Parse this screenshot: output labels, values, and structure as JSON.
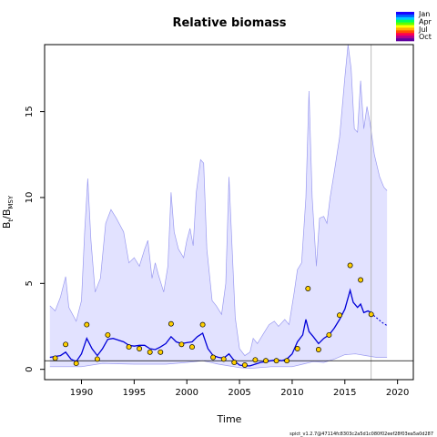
{
  "chart_data": {
    "type": "line",
    "title": "Relative biomass",
    "xlabel": "Time",
    "ylabel_main": "B",
    "ylabel_sub1": "t",
    "ylabel_mid": "/B",
    "ylabel_sub2": "MSY",
    "xlim": [
      1986.5,
      2021.5
    ],
    "ylim": [
      -0.6,
      18.9
    ],
    "x_ticks": [
      1990,
      1995,
      2000,
      2005,
      2010,
      2015,
      2020
    ],
    "y_ticks": [
      0,
      5,
      10,
      15
    ],
    "reference_line_y": 0.5,
    "vertical_line_x": 2017.5,
    "median_end_x": 2017.5,
    "legend_entries": [
      "Jan",
      "Apr",
      "Jul",
      "Oct"
    ],
    "legend_colors": [
      "#1a00ff",
      "#0060ff",
      "#00c8ff",
      "#00ff60",
      "#60ff00",
      "#ffff00",
      "#ffb000",
      "#ff5000",
      "#ff0050",
      "#b00090",
      "#6000a0"
    ],
    "footer": "spict_v1.2.7@47114fc8303c2a5d1c080f02eef28f03ea5a0d287",
    "ci_upper": [
      [
        1987.0,
        3.7
      ],
      [
        1987.5,
        3.4
      ],
      [
        1988.0,
        4.2
      ],
      [
        1988.5,
        5.4
      ],
      [
        1988.8,
        3.6
      ],
      [
        1989.5,
        2.8
      ],
      [
        1990.0,
        4.0
      ],
      [
        1990.3,
        8.0
      ],
      [
        1990.6,
        11.1
      ],
      [
        1990.9,
        7.5
      ],
      [
        1991.3,
        4.5
      ],
      [
        1991.8,
        5.3
      ],
      [
        1992.3,
        8.5
      ],
      [
        1992.8,
        9.3
      ],
      [
        1993.3,
        8.8
      ],
      [
        1994.0,
        8.0
      ],
      [
        1994.5,
        6.2
      ],
      [
        1995.0,
        6.5
      ],
      [
        1995.5,
        6.0
      ],
      [
        1996.0,
        7.0
      ],
      [
        1996.3,
        7.5
      ],
      [
        1996.7,
        5.3
      ],
      [
        1997.0,
        6.2
      ],
      [
        1997.3,
        5.5
      ],
      [
        1997.8,
        4.5
      ],
      [
        1998.2,
        6.0
      ],
      [
        1998.5,
        10.3
      ],
      [
        1998.8,
        8.0
      ],
      [
        1999.2,
        7.0
      ],
      [
        1999.7,
        6.5
      ],
      [
        2000.0,
        7.5
      ],
      [
        2000.3,
        8.2
      ],
      [
        2000.6,
        7.2
      ],
      [
        2000.9,
        10.3
      ],
      [
        2001.3,
        12.2
      ],
      [
        2001.6,
        12.0
      ],
      [
        2001.9,
        7.0
      ],
      [
        2002.4,
        4.0
      ],
      [
        2002.8,
        3.7
      ],
      [
        2003.3,
        3.2
      ],
      [
        2003.7,
        5.0
      ],
      [
        2004.0,
        11.2
      ],
      [
        2004.3,
        7.0
      ],
      [
        2004.6,
        3.0
      ],
      [
        2005.0,
        1.2
      ],
      [
        2005.5,
        0.8
      ],
      [
        2006.0,
        1.0
      ],
      [
        2006.3,
        1.8
      ],
      [
        2006.7,
        1.5
      ],
      [
        2007.2,
        2.0
      ],
      [
        2007.8,
        2.6
      ],
      [
        2008.3,
        2.8
      ],
      [
        2008.7,
        2.5
      ],
      [
        2009.3,
        2.9
      ],
      [
        2009.7,
        2.6
      ],
      [
        2010.2,
        4.5
      ],
      [
        2010.5,
        5.8
      ],
      [
        2010.9,
        6.2
      ],
      [
        2011.3,
        10.0
      ],
      [
        2011.6,
        16.2
      ],
      [
        2011.9,
        10.0
      ],
      [
        2012.3,
        6.0
      ],
      [
        2012.6,
        8.8
      ],
      [
        2013.0,
        8.9
      ],
      [
        2013.3,
        8.5
      ],
      [
        2013.6,
        10.0
      ],
      [
        2014.0,
        11.5
      ],
      [
        2014.5,
        13.5
      ],
      [
        2015.0,
        17.0
      ],
      [
        2015.3,
        18.9
      ],
      [
        2015.6,
        17.5
      ],
      [
        2015.9,
        14.0
      ],
      [
        2016.2,
        13.8
      ],
      [
        2016.5,
        16.8
      ],
      [
        2016.8,
        14.0
      ],
      [
        2017.1,
        15.3
      ],
      [
        2017.4,
        14.3
      ],
      [
        2017.8,
        12.5
      ],
      [
        2018.3,
        11.2
      ],
      [
        2018.7,
        10.6
      ],
      [
        2019.0,
        10.4
      ]
    ],
    "ci_lower": [
      [
        1987.0,
        0.15
      ],
      [
        1990.0,
        0.15
      ],
      [
        1992.0,
        0.35
      ],
      [
        1995.0,
        0.3
      ],
      [
        1998.0,
        0.3
      ],
      [
        2000.0,
        0.4
      ],
      [
        2001.5,
        0.5
      ],
      [
        2003.0,
        0.3
      ],
      [
        2005.0,
        0.1
      ],
      [
        2006.0,
        0.05
      ],
      [
        2008.0,
        0.15
      ],
      [
        2010.0,
        0.15
      ],
      [
        2011.0,
        0.3
      ],
      [
        2012.0,
        0.45
      ],
      [
        2013.0,
        0.4
      ],
      [
        2014.0,
        0.6
      ],
      [
        2015.0,
        0.85
      ],
      [
        2016.0,
        0.9
      ],
      [
        2017.0,
        0.8
      ],
      [
        2018.0,
        0.7
      ],
      [
        2019.0,
        0.7
      ]
    ],
    "median": [
      [
        1987.0,
        0.7
      ],
      [
        1987.5,
        0.75
      ],
      [
        1988.0,
        0.8
      ],
      [
        1988.5,
        1.0
      ],
      [
        1989.0,
        0.6
      ],
      [
        1989.5,
        0.45
      ],
      [
        1990.0,
        0.9
      ],
      [
        1990.5,
        1.8
      ],
      [
        1991.0,
        1.2
      ],
      [
        1991.5,
        0.8
      ],
      [
        1992.0,
        1.2
      ],
      [
        1992.5,
        1.75
      ],
      [
        1993.0,
        1.8
      ],
      [
        1993.5,
        1.7
      ],
      [
        1994.0,
        1.6
      ],
      [
        1994.5,
        1.4
      ],
      [
        1995.0,
        1.35
      ],
      [
        1995.5,
        1.4
      ],
      [
        1996.0,
        1.4
      ],
      [
        1996.5,
        1.2
      ],
      [
        1997.0,
        1.15
      ],
      [
        1997.5,
        1.3
      ],
      [
        1998.0,
        1.5
      ],
      [
        1998.5,
        1.9
      ],
      [
        1999.0,
        1.6
      ],
      [
        1999.5,
        1.5
      ],
      [
        2000.0,
        1.55
      ],
      [
        2000.5,
        1.6
      ],
      [
        2001.0,
        1.9
      ],
      [
        2001.5,
        2.1
      ],
      [
        2002.0,
        1.2
      ],
      [
        2002.5,
        0.8
      ],
      [
        2003.0,
        0.7
      ],
      [
        2003.5,
        0.65
      ],
      [
        2004.0,
        0.9
      ],
      [
        2004.5,
        0.5
      ],
      [
        2005.0,
        0.25
      ],
      [
        2005.5,
        0.2
      ],
      [
        2006.0,
        0.2
      ],
      [
        2006.5,
        0.3
      ],
      [
        2007.0,
        0.4
      ],
      [
        2007.5,
        0.45
      ],
      [
        2008.0,
        0.5
      ],
      [
        2008.5,
        0.55
      ],
      [
        2009.0,
        0.5
      ],
      [
        2009.5,
        0.6
      ],
      [
        2010.0,
        0.9
      ],
      [
        2010.5,
        1.6
      ],
      [
        2011.0,
        2.0
      ],
      [
        2011.3,
        2.9
      ],
      [
        2011.6,
        2.2
      ],
      [
        2012.0,
        1.9
      ],
      [
        2012.5,
        1.5
      ],
      [
        2013.0,
        1.8
      ],
      [
        2013.5,
        2.0
      ],
      [
        2014.0,
        2.4
      ],
      [
        2014.5,
        2.9
      ],
      [
        2015.0,
        3.5
      ],
      [
        2015.5,
        4.6
      ],
      [
        2015.8,
        3.9
      ],
      [
        2016.2,
        3.6
      ],
      [
        2016.5,
        3.8
      ],
      [
        2016.8,
        3.3
      ],
      [
        2017.2,
        3.4
      ],
      [
        2017.5,
        3.3
      ]
    ],
    "forecast": [
      [
        2017.5,
        3.3
      ],
      [
        2017.8,
        3.1
      ],
      [
        2018.2,
        2.9
      ],
      [
        2018.6,
        2.7
      ],
      [
        2019.0,
        2.55
      ]
    ],
    "observations": [
      [
        1987.5,
        0.65
      ],
      [
        1988.5,
        1.45
      ],
      [
        1989.5,
        0.35
      ],
      [
        1990.5,
        2.6
      ],
      [
        1991.5,
        0.6
      ],
      [
        1992.5,
        2.0
      ],
      [
        1994.5,
        1.3
      ],
      [
        1995.5,
        1.2
      ],
      [
        1996.5,
        1.0
      ],
      [
        1997.5,
        1.0
      ],
      [
        1998.5,
        2.65
      ],
      [
        1999.5,
        1.45
      ],
      [
        2000.5,
        1.3
      ],
      [
        2001.5,
        2.6
      ],
      [
        2002.5,
        0.7
      ],
      [
        2003.5,
        0.6
      ],
      [
        2004.5,
        0.4
      ],
      [
        2005.5,
        0.25
      ],
      [
        2006.5,
        0.55
      ],
      [
        2007.5,
        0.5
      ],
      [
        2008.5,
        0.5
      ],
      [
        2009.5,
        0.5
      ],
      [
        2010.5,
        1.2
      ],
      [
        2011.5,
        4.7
      ],
      [
        2012.5,
        1.15
      ],
      [
        2013.5,
        2.0
      ],
      [
        2014.5,
        3.15
      ],
      [
        2015.5,
        6.05
      ],
      [
        2016.5,
        5.2
      ],
      [
        2017.5,
        3.2
      ]
    ]
  }
}
